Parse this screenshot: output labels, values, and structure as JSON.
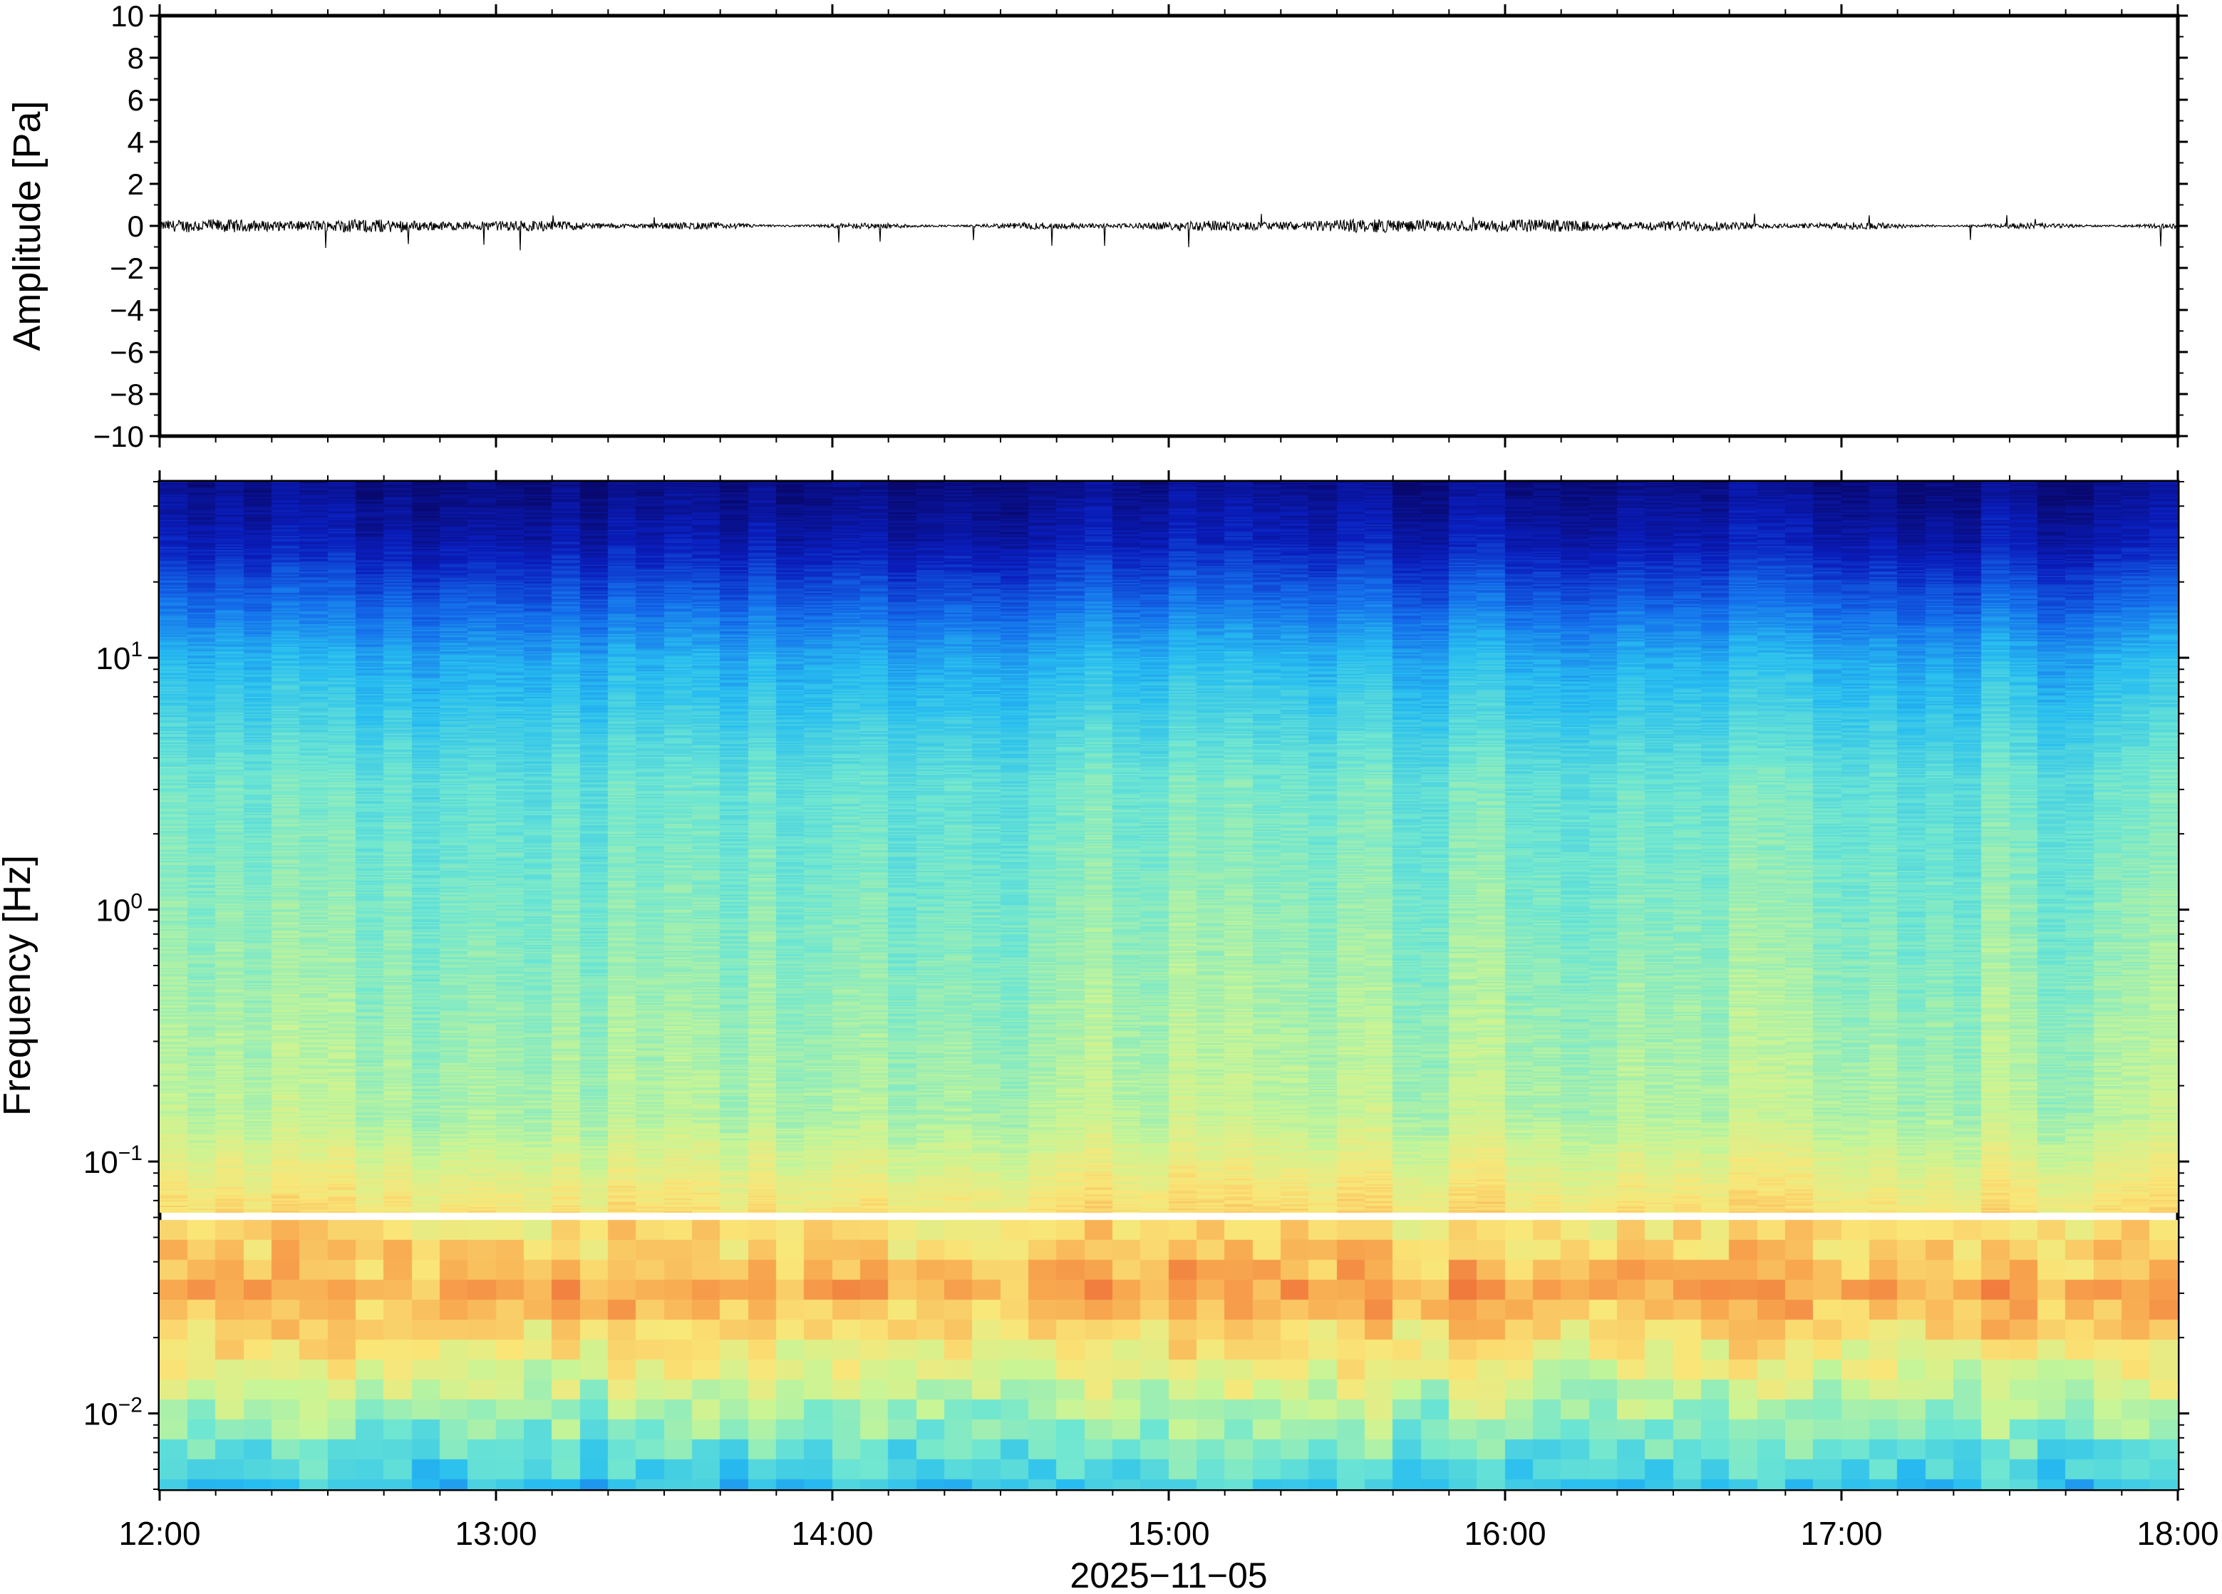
{
  "chart_data": [
    {
      "type": "line",
      "panel": "amplitude",
      "ylabel": "Amplitude [Pa]",
      "ylim": [
        -10,
        10
      ],
      "yticks": [
        10,
        8,
        6,
        4,
        2,
        0,
        -2,
        -4,
        -6,
        -8,
        -10
      ],
      "ytick_labels": [
        "10",
        "8",
        "6",
        "4",
        "2",
        "0",
        "−2",
        "−4",
        "−6",
        "−8",
        "−10"
      ],
      "xlim": [
        "12:00",
        "18:00"
      ],
      "series": [
        {
          "color": "#000000",
          "description_values": {
            "envelope_min": -1.0,
            "envelope_max": 0.6,
            "mean": 0.0
          }
        }
      ]
    },
    {
      "type": "heatmap",
      "panel": "spectrogram",
      "ylabel": "Frequency [Hz]",
      "yscale": "log",
      "ylim": [
        0.005,
        50
      ],
      "yticks": [
        0.01,
        0.1,
        1,
        10
      ],
      "ytick_labels": [
        {
          "base": "10",
          "exp": "−2"
        },
        {
          "base": "10",
          "exp": "−1"
        },
        {
          "base": "10",
          "exp": "0"
        },
        {
          "base": "10",
          "exp": "1"
        }
      ],
      "xlim": [
        "12:00",
        "18:00"
      ],
      "xticks": [
        "12:00",
        "13:00",
        "14:00",
        "15:00",
        "16:00",
        "17:00",
        "18:00"
      ],
      "xlabel": "2025−11−05",
      "colormap": "jet",
      "colors": {
        "low": "#0a0a78",
        "mid": "#7fe8c8",
        "high": "#f06a30"
      }
    }
  ]
}
